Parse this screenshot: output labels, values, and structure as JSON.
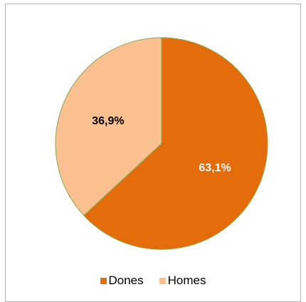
{
  "chart_data": {
    "type": "pie",
    "categories": [
      "Dones",
      "Homes"
    ],
    "values": [
      63.1,
      36.9
    ],
    "data_labels": [
      "63,1%",
      "36,9%"
    ],
    "colors": [
      "#e46c0a",
      "#fac090"
    ],
    "label_colors": [
      "#ffffff",
      "#000000"
    ],
    "slice_border_color": "#8aa84a",
    "legend_position": "bottom"
  }
}
